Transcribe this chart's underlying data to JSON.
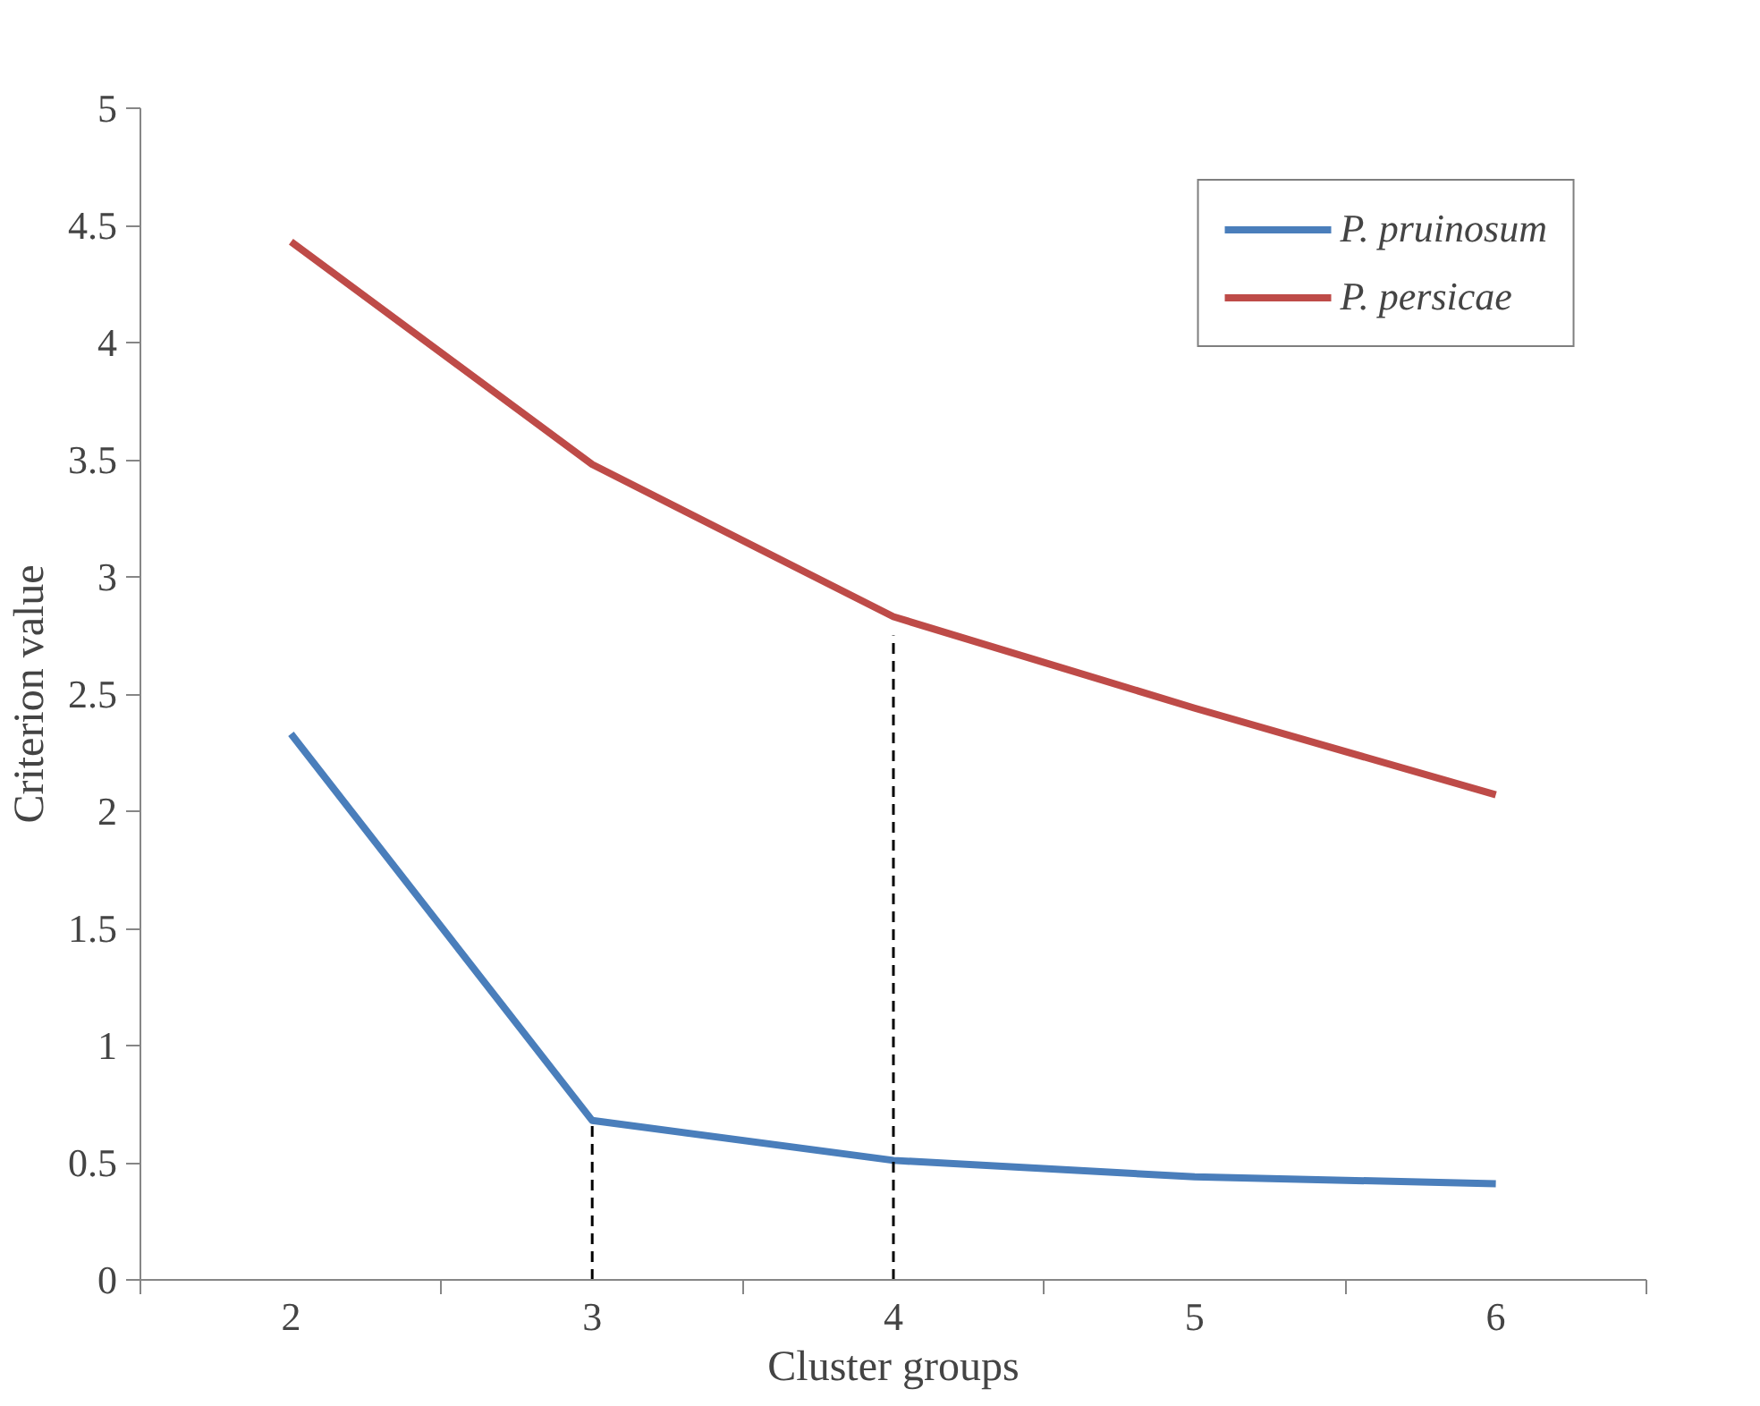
{
  "chart_data": {
    "type": "line",
    "xlabel": "Cluster groups",
    "ylabel": "Criterion value",
    "categories": [
      "2",
      "3",
      "4",
      "5",
      "6"
    ],
    "series": [
      {
        "name": "P. pruinosum",
        "color": "#4a7ebb",
        "values": [
          2.33,
          0.68,
          0.51,
          0.44,
          0.41
        ]
      },
      {
        "name": "P. persicae",
        "color": "#be4b48",
        "values": [
          4.43,
          3.48,
          2.83,
          2.44,
          2.07
        ]
      },
      {
        "type": "line",
        "x": [
          "3",
          "3"
        ],
        "values": [
          0,
          0.68
        ],
        "color": "#000000",
        "line_style": "dashed"
      },
      {
        "type": "line",
        "x": [
          "4",
          "4"
        ],
        "values": [
          0,
          2.75
        ],
        "color": "#000000",
        "line_style": "dashed"
      }
    ],
    "ylim": [
      0,
      5
    ],
    "yticks": [
      0,
      0.5,
      1,
      1.5,
      2,
      2.5,
      3,
      3.5,
      4,
      4.5,
      5
    ],
    "grid": false,
    "legend": "top right",
    "marker": "none",
    "line_style": "solid"
  }
}
